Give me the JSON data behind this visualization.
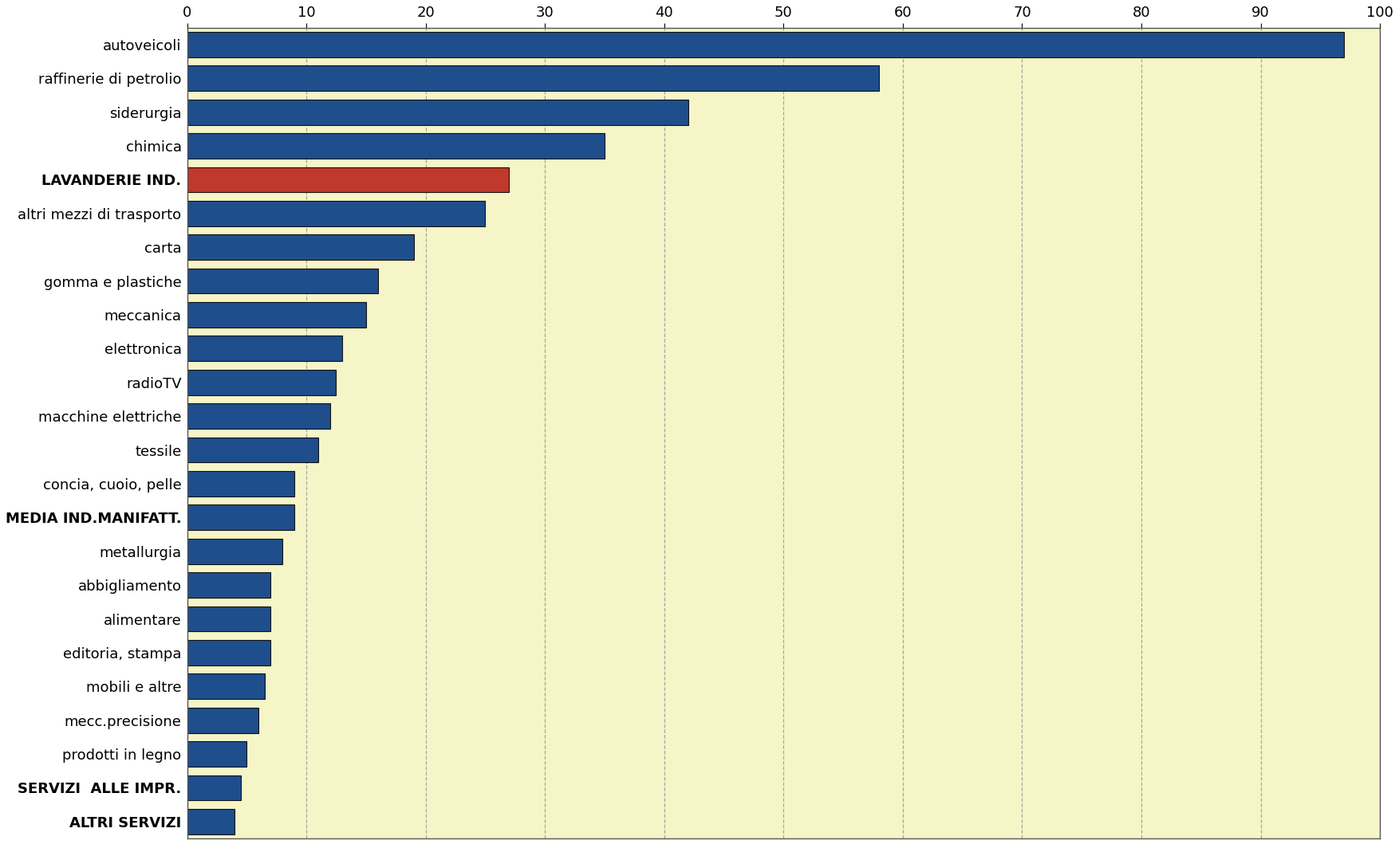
{
  "categories": [
    "ALTRI SERVIZI",
    "SERVIZI  ALLE IMPR.",
    "prodotti in legno",
    "mecc.precisione",
    "mobili e altre",
    "editoria, stampa",
    "alimentare",
    "abbigliamento",
    "metallurgia",
    "MEDIA IND.MANIFATT.",
    "concia, cuoio, pelle",
    "tessile",
    "macchine elettriche",
    "radioTV",
    "elettronica",
    "meccanica",
    "gomma e plastiche",
    "carta",
    "altri mezzi di trasporto",
    "LAVANDERIE IND.",
    "chimica",
    "siderurgia",
    "raffinerie di petrolio",
    "autoveicoli"
  ],
  "values": [
    4.0,
    4.5,
    5.0,
    6.0,
    6.5,
    7.0,
    7.0,
    7.0,
    8.0,
    9.0,
    9.0,
    11.0,
    12.0,
    12.5,
    13.0,
    15.0,
    16.0,
    19.0,
    25.0,
    27.0,
    35.0,
    42.0,
    58.0,
    97.0
  ],
  "colors": [
    "#1f4e8c",
    "#1f4e8c",
    "#1f4e8c",
    "#1f4e8c",
    "#1f4e8c",
    "#1f4e8c",
    "#1f4e8c",
    "#1f4e8c",
    "#1f4e8c",
    "#1f4e8c",
    "#1f4e8c",
    "#1f4e8c",
    "#1f4e8c",
    "#1f4e8c",
    "#1f4e8c",
    "#1f4e8c",
    "#1f4e8c",
    "#1f4e8c",
    "#1f4e8c",
    "#c0392b",
    "#1f4e8c",
    "#1f4e8c",
    "#1f4e8c",
    "#1f4e8c"
  ],
  "xlim": [
    0,
    100
  ],
  "xticks": [
    0,
    10,
    20,
    30,
    40,
    50,
    60,
    70,
    80,
    90,
    100
  ],
  "plot_bg_color": "#f5f5c8",
  "fig_bg_color": "#ffffff",
  "grid_color": "#888888",
  "bar_edge_color": "#111111",
  "label_fontsize": 13,
  "tick_fontsize": 13,
  "bar_height": 0.75
}
